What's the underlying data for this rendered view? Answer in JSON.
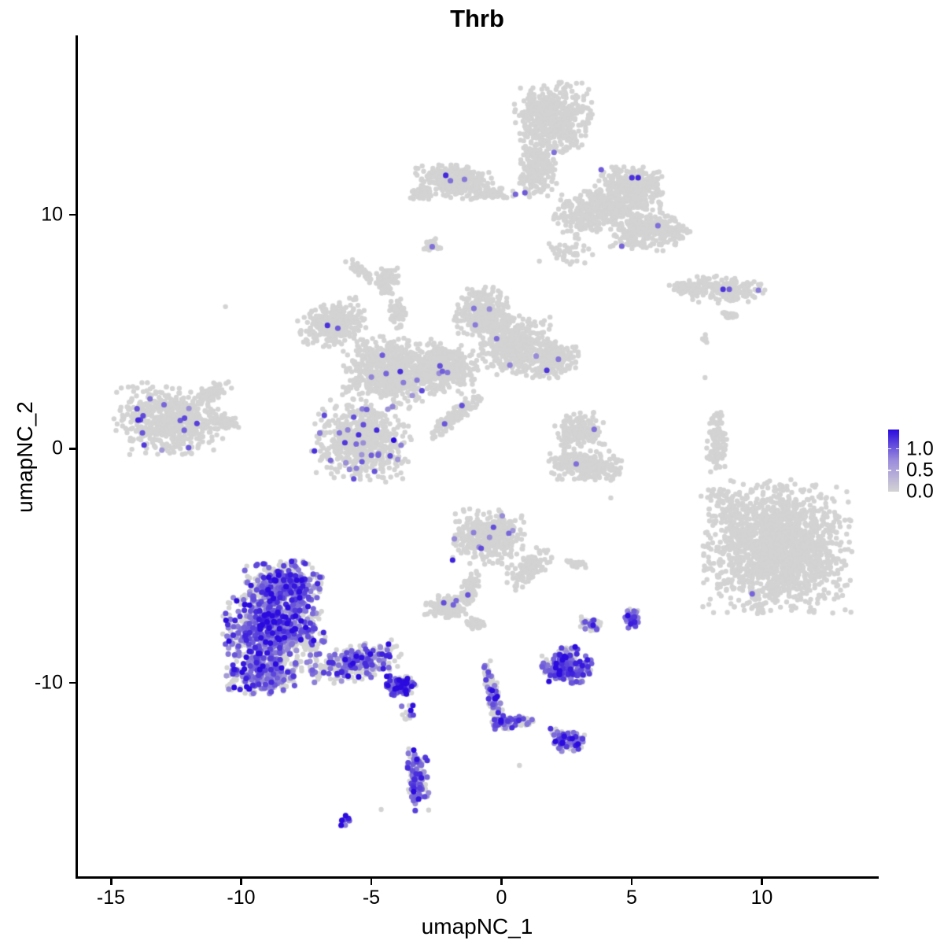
{
  "figure": {
    "title": "Thrb"
  },
  "axes": {
    "x": {
      "label": "umapNC_1",
      "tick_labels": [
        "-15",
        "-10",
        "-5",
        "0",
        "5",
        "10"
      ],
      "tick_values": [
        -15,
        -10,
        -5,
        0,
        5,
        10
      ],
      "lim": [
        -16.36,
        14.49
      ]
    },
    "y": {
      "label": "umapNC_2",
      "tick_labels": [
        "-10",
        "0",
        "10"
      ],
      "tick_values": [
        -10,
        0,
        10
      ],
      "lim": [
        -18.37,
        17.66
      ]
    }
  },
  "legend": {
    "tick_labels": [
      "1.0",
      "0.5",
      "0.0"
    ],
    "tick_values": [
      1.0,
      0.5,
      0.0
    ],
    "vmax": 1.45,
    "color_high": "#2a0ade",
    "color_mid": "#9c8ddc",
    "color_zero": "#d3d3d3"
  },
  "colors": {
    "background": "#ffffff",
    "axis": "#000000",
    "point_gray": "#d3d3d3",
    "point_high": "#2a0ade"
  },
  "chart_data": {
    "type": "scatter",
    "title": "Thrb",
    "xlabel": "umapNC_1",
    "ylabel": "umapNC_2",
    "grid": false,
    "legend_position": "right",
    "point_radius_px": 3.2,
    "seed": 42,
    "clusters": [
      {
        "name": "top-head",
        "x": 1.9,
        "y": 14.13,
        "rx": 1.36,
        "ry": 1.41,
        "rot": 0,
        "n": 550,
        "frac": 0
      },
      {
        "name": "top-neck",
        "x": 1.3,
        "y": 11.95,
        "rx": 0.66,
        "ry": 1.08,
        "rot": 0,
        "n": 220,
        "frac": 0
      },
      {
        "name": "top-left-wing",
        "x": -1.96,
        "y": 11.45,
        "rx": 1.4,
        "ry": 0.7,
        "rot": 4,
        "n": 300,
        "frac": 0
      },
      {
        "name": "top-left-wing-tip",
        "x": -3.23,
        "y": 10.9,
        "rx": 0.45,
        "ry": 0.27,
        "rot": 0,
        "n": 50,
        "frac": 0
      },
      {
        "name": "top-wing-junction",
        "x": -0.36,
        "y": 10.91,
        "rx": 0.8,
        "ry": 0.2,
        "rot": 0,
        "n": 60,
        "frac": 0
      },
      {
        "name": "top-small-satellite",
        "x": -2.78,
        "y": 8.69,
        "rx": 0.33,
        "ry": 0.27,
        "rot": 0,
        "n": 30,
        "frac": 0
      },
      {
        "name": "top-body",
        "x": 4.01,
        "y": 10.37,
        "rx": 1.96,
        "ry": 0.91,
        "rot": -14,
        "n": 520,
        "frac": 0
      },
      {
        "name": "top-upper-right-arm",
        "x": 4.92,
        "y": 11.38,
        "rx": 1.21,
        "ry": 0.67,
        "rot": 0,
        "n": 200,
        "frac": 0
      },
      {
        "name": "top-lower-right-lobe",
        "x": 5.37,
        "y": 9.36,
        "rx": 1.21,
        "ry": 0.84,
        "rot": 0,
        "n": 240,
        "frac": 0
      },
      {
        "name": "top-right-tip",
        "x": 6.58,
        "y": 9.19,
        "rx": 0.54,
        "ry": 0.44,
        "rot": 0,
        "n": 60,
        "frac": 0
      },
      {
        "name": "top-under-speckle",
        "x": 2.5,
        "y": 8.42,
        "rx": 1.06,
        "ry": 0.6,
        "rot": 0,
        "n": 45,
        "frac": 0
      },
      {
        "name": "ne-band",
        "x": 8.39,
        "y": 6.81,
        "rx": 1.66,
        "ry": 0.54,
        "rot": 0,
        "n": 170,
        "frac": 0
      },
      {
        "name": "ne-band-left-tail",
        "x": 7.03,
        "y": 6.91,
        "rx": 0.7,
        "ry": 0.25,
        "rot": 0,
        "n": 50,
        "frac": 0
      },
      {
        "name": "ne-dash",
        "x": 8.75,
        "y": 5.7,
        "rx": 0.36,
        "ry": 0.17,
        "rot": 0,
        "n": 25,
        "frac": 0
      },
      {
        "name": "ne-dots",
        "x": 7.73,
        "y": 4.69,
        "rx": 0.25,
        "ry": 0.25,
        "rot": 0,
        "n": 8,
        "frac": 0
      },
      {
        "name": "left-cluster",
        "x": -12.8,
        "y": 1.29,
        "rx": 2.05,
        "ry": 1.41,
        "rot": 0,
        "n": 600,
        "frac": 0.015
      },
      {
        "name": "left-cluster-spur",
        "x": -11.14,
        "y": 2.44,
        "rx": 0.66,
        "ry": 0.35,
        "rot": -30,
        "n": 70,
        "frac": 0
      },
      {
        "name": "left-cluster-east",
        "x": -10.69,
        "y": 1.09,
        "rx": 0.5,
        "ry": 0.3,
        "rot": 0,
        "n": 50,
        "frac": 0
      },
      {
        "name": "central-nw-wing",
        "x": -6.55,
        "y": 5.33,
        "rx": 1.21,
        "ry": 0.88,
        "rot": -20,
        "n": 300,
        "frac": 0.012
      },
      {
        "name": "central-mushroom",
        "x": -4.5,
        "y": 7.18,
        "rx": 0.45,
        "ry": 0.5,
        "rot": 0,
        "n": 80,
        "frac": 0
      },
      {
        "name": "central-stem",
        "x": -4.07,
        "y": 5.8,
        "rx": 0.3,
        "ry": 0.6,
        "rot": 0,
        "n": 60,
        "frac": 0
      },
      {
        "name": "central-ridge",
        "x": -5.49,
        "y": 7.58,
        "rx": 0.66,
        "ry": 0.2,
        "rot": 35,
        "n": 50,
        "frac": 0
      },
      {
        "name": "central-west-mass",
        "x": -4.38,
        "y": 3.38,
        "rx": 1.66,
        "ry": 1.34,
        "rot": 0,
        "n": 650,
        "frac": 0.009
      },
      {
        "name": "central-sw-lobe",
        "x": -5.46,
        "y": 0.35,
        "rx": 1.75,
        "ry": 1.61,
        "rot": 0,
        "n": 600,
        "frac": 0.045
      },
      {
        "name": "central-bridge",
        "x": -2.32,
        "y": 3.45,
        "rx": 1.21,
        "ry": 1.01,
        "rot": 0,
        "n": 350,
        "frac": 0.01
      },
      {
        "name": "central-ne-lobe",
        "x": -0.75,
        "y": 5.8,
        "rx": 1.06,
        "ry": 1.01,
        "rot": 0,
        "n": 320,
        "frac": 0.02
      },
      {
        "name": "central-east-lobe",
        "x": 0.45,
        "y": 4.39,
        "rx": 1.36,
        "ry": 1.18,
        "rot": 0,
        "n": 420,
        "frac": 0.012
      },
      {
        "name": "central-east-arm",
        "x": 1.9,
        "y": 3.78,
        "rx": 0.91,
        "ry": 0.74,
        "rot": 0,
        "n": 220,
        "frac": 0.015
      },
      {
        "name": "central-se-streak",
        "x": -1.81,
        "y": 1.43,
        "rx": 1.21,
        "ry": 0.3,
        "rot": -40,
        "n": 130,
        "frac": 0.01
      },
      {
        "name": "midright-upper",
        "x": 2.96,
        "y": 0.76,
        "rx": 0.91,
        "ry": 0.74,
        "rot": 0,
        "n": 160,
        "frac": 0
      },
      {
        "name": "midright-crescent",
        "x": 3.17,
        "y": -0.72,
        "rx": 1.36,
        "ry": 0.6,
        "rot": 0,
        "n": 240,
        "frac": 0
      },
      {
        "name": "midright-dash",
        "x": 2.81,
        "y": -4.92,
        "rx": 0.42,
        "ry": 0.17,
        "rot": 0,
        "n": 25,
        "frac": 0
      },
      {
        "name": "east-crescent",
        "x": 8.18,
        "y": 0.18,
        "rx": 0.36,
        "ry": 1.28,
        "rot": 0,
        "n": 100,
        "frac": 0
      },
      {
        "name": "east-crescent-dots",
        "x": 8.09,
        "y": -2.0,
        "rx": 0.3,
        "ry": 0.5,
        "rot": 0,
        "n": 10,
        "frac": 0
      },
      {
        "name": "midbottom-leaf",
        "x": -0.57,
        "y": -3.75,
        "rx": 1.27,
        "ry": 1.08,
        "rot": 0,
        "n": 380,
        "frac": 0.016
      },
      {
        "name": "midbottom-crescent",
        "x": 0.94,
        "y": -5.09,
        "rx": 0.91,
        "ry": 0.5,
        "rot": -35,
        "n": 130,
        "frac": 0.01
      },
      {
        "name": "midbottom-stalk",
        "x": -1.3,
        "y": -5.93,
        "rx": 0.3,
        "ry": 0.7,
        "rot": 15,
        "n": 80,
        "frac": 0
      },
      {
        "name": "midbottom-foot",
        "x": -2.11,
        "y": -6.77,
        "rx": 0.85,
        "ry": 0.5,
        "rot": 0,
        "n": 130,
        "frac": 0.02
      },
      {
        "name": "midbottom-bits",
        "x": -1.09,
        "y": -7.45,
        "rx": 0.36,
        "ry": 0.25,
        "rot": 0,
        "n": 35,
        "frac": 0
      },
      {
        "name": "sw-dome",
        "x": -8.48,
        "y": -5.83,
        "rx": 1.36,
        "ry": 0.94,
        "rot": 0,
        "n": 450,
        "frac": 0.5
      },
      {
        "name": "sw-main",
        "x": -8.84,
        "y": -7.71,
        "rx": 1.81,
        "ry": 1.48,
        "rot": 0,
        "n": 850,
        "frac": 0.5
      },
      {
        "name": "sw-lower",
        "x": -9.24,
        "y": -9.66,
        "rx": 1.36,
        "ry": 0.81,
        "rot": 0,
        "n": 330,
        "frac": 0.45
      },
      {
        "name": "sw-tail",
        "x": -5.64,
        "y": -9.16,
        "rx": 1.66,
        "ry": 0.71,
        "rot": -12,
        "n": 320,
        "frac": 0.35
      },
      {
        "name": "sw-tail-tip",
        "x": -3.95,
        "y": -10.1,
        "rx": 0.54,
        "ry": 0.4,
        "rot": 0,
        "n": 130,
        "frac": 0.7
      },
      {
        "name": "sw-tip-dots",
        "x": -3.77,
        "y": -11.18,
        "rx": 0.3,
        "ry": 0.4,
        "rot": 0,
        "n": 14,
        "frac": 0.3
      },
      {
        "name": "bottom-streak",
        "x": -0.45,
        "y": -10.37,
        "rx": 0.26,
        "ry": 1.41,
        "rot": -12,
        "n": 110,
        "frac": 0.3
      },
      {
        "name": "bottom-elbow",
        "x": -0.06,
        "y": -11.68,
        "rx": 0.45,
        "ry": 0.33,
        "rot": 0,
        "n": 60,
        "frac": 0.5
      },
      {
        "name": "bottom-elbow-arm",
        "x": 0.63,
        "y": -11.68,
        "rx": 0.45,
        "ry": 0.23,
        "rot": 0,
        "n": 40,
        "frac": 0.2
      },
      {
        "name": "bottom-knot",
        "x": 2.44,
        "y": -12.42,
        "rx": 0.63,
        "ry": 0.47,
        "rot": 0,
        "n": 110,
        "frac": 0.5
      },
      {
        "name": "bottom-purple-cluster",
        "x": 2.38,
        "y": -9.39,
        "rx": 0.91,
        "ry": 0.57,
        "rot": 0,
        "n": 240,
        "frac": 0.6
      },
      {
        "name": "bottom-purple-satellites",
        "x": 2.54,
        "y": -8.62,
        "rx": 0.39,
        "ry": 0.27,
        "rot": 0,
        "n": 35,
        "frac": 0.3
      },
      {
        "name": "small-pair-east",
        "x": 4.92,
        "y": -7.24,
        "rx": 0.33,
        "ry": 0.4,
        "rot": 0,
        "n": 55,
        "frac": 0.55
      },
      {
        "name": "small-pair-west",
        "x": 3.35,
        "y": -7.51,
        "rx": 0.39,
        "ry": 0.3,
        "rot": 0,
        "n": 45,
        "frac": 0.3
      },
      {
        "name": "bottom-tail",
        "x": -3.32,
        "y": -14.17,
        "rx": 0.42,
        "ry": 1.18,
        "rot": 0,
        "n": 140,
        "frac": 0.55
      },
      {
        "name": "bottom-speck",
        "x": -6.07,
        "y": -15.88,
        "rx": 0.3,
        "ry": 0.17,
        "rot": -30,
        "n": 14,
        "frac": 0.8
      },
      {
        "name": "big-right-cluster",
        "x": 10.5,
        "y": -4.18,
        "rx": 2.66,
        "ry": 2.62,
        "rot": 0,
        "n": 1700,
        "frac": 0
      },
      {
        "name": "big-right-satellites",
        "x": 8.84,
        "y": -2.4,
        "rx": 0.85,
        "ry": 0.71,
        "rot": 0,
        "n": 25,
        "frac": 0
      }
    ],
    "expressing_singles": [
      [
        -2.23,
        11.68,
        0.85
      ],
      [
        -2.05,
        11.45,
        0.5
      ],
      [
        -1.51,
        11.51,
        0.45
      ],
      [
        0.45,
        10.87,
        0.55
      ],
      [
        0.81,
        10.94,
        0.6
      ],
      [
        1.93,
        12.66,
        0.5
      ],
      [
        3.74,
        11.92,
        0.6
      ],
      [
        4.92,
        11.58,
        0.8
      ],
      [
        5.16,
        11.58,
        0.85
      ],
      [
        5.92,
        9.53,
        0.5
      ],
      [
        4.53,
        8.65,
        0.55
      ],
      [
        -2.75,
        8.63,
        0.5
      ],
      [
        8.42,
        6.81,
        0.8
      ],
      [
        8.66,
        6.81,
        0.6
      ],
      [
        9.78,
        6.77,
        0.45
      ],
      [
        3.47,
        0.83,
        0.5
      ],
      [
        2.78,
        -0.65,
        0.5
      ],
      [
        9.54,
        -6.2,
        0.55
      ]
    ],
    "background_singles": [
      [
        -10.69,
        6.07
      ],
      [
        -3.65,
        -12.82
      ],
      [
        -4.71,
        -15.41
      ],
      [
        0.6,
        -13.53
      ],
      [
        4.11,
        -2.1
      ],
      [
        7.73,
        3.04
      ]
    ]
  }
}
